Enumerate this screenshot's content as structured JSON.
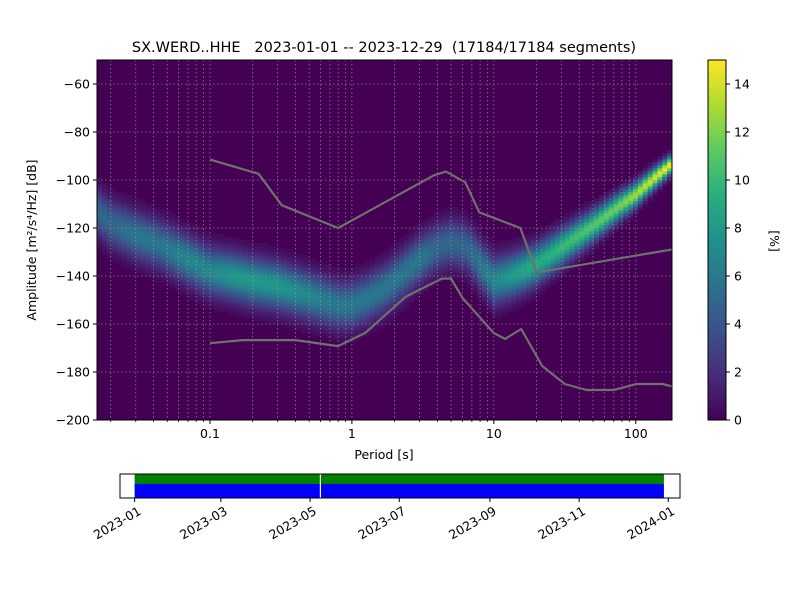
{
  "chart_data": [
    {
      "type": "heatmap",
      "title": "SX.WERD..HHE   2023-01-01 -- 2023-12-29  (17184/17184 segments)",
      "xlabel": "Period [s]",
      "ylabel": "Amplitude [m²/s⁴/Hz] [dB]",
      "xscale": "log",
      "xlim": [
        0.016,
        180
      ],
      "ylim": [
        -200,
        -50
      ],
      "xticks": [
        {
          "value": 0.1,
          "label": "0.1"
        },
        {
          "value": 1,
          "label": "1"
        },
        {
          "value": 10,
          "label": "10"
        },
        {
          "value": 100,
          "label": "100"
        }
      ],
      "yticks": [
        {
          "value": -60,
          "label": "−60"
        },
        {
          "value": -80,
          "label": "−80"
        },
        {
          "value": -100,
          "label": "−100"
        },
        {
          "value": -120,
          "label": "−120"
        },
        {
          "value": -140,
          "label": "−140"
        },
        {
          "value": -160,
          "label": "−160"
        },
        {
          "value": -180,
          "label": "−180"
        },
        {
          "value": -200,
          "label": "−200"
        }
      ],
      "grid": true,
      "colorbar": {
        "label": "[%]",
        "min": 0,
        "max": 15,
        "ticks": [
          {
            "value": 0,
            "label": "0"
          },
          {
            "value": 2,
            "label": "2"
          },
          {
            "value": 4,
            "label": "4"
          },
          {
            "value": 6,
            "label": "6"
          },
          {
            "value": 8,
            "label": "8"
          },
          {
            "value": 10,
            "label": "10"
          },
          {
            "value": 12,
            "label": "12"
          },
          {
            "value": 14,
            "label": "14"
          }
        ]
      },
      "mode_curve": {
        "period": [
          0.016,
          0.02,
          0.03,
          0.045,
          0.07,
          0.1,
          0.15,
          0.2,
          0.3,
          0.5,
          0.8,
          1.0,
          1.3,
          1.7,
          2.3,
          3.0,
          4.0,
          5.0,
          6.5,
          8.0,
          10,
          13,
          17,
          20,
          30,
          50,
          80,
          100,
          130,
          180
        ],
        "db": [
          -113,
          -118,
          -123,
          -127,
          -133,
          -138,
          -140,
          -142,
          -144,
          -148,
          -152,
          -152,
          -149,
          -145,
          -139,
          -133,
          -128,
          -126,
          -128,
          -135,
          -142,
          -140,
          -137,
          -135,
          -128,
          -119,
          -110,
          -106,
          -100,
          -93
        ],
        "peak_percent": [
          5,
          5,
          6,
          6,
          7,
          7,
          8,
          8,
          8,
          7,
          6,
          6,
          6,
          6,
          6,
          6,
          5,
          5,
          5,
          6,
          7,
          8,
          9,
          9,
          10,
          11,
          12,
          13,
          14,
          15
        ]
      },
      "noise_models": {
        "high": {
          "period": [
            0.1,
            0.22,
            0.32,
            0.8,
            3.8,
            4.6,
            6.3,
            7.9,
            15.4,
            20,
            354.8
          ],
          "db": [
            -91.5,
            -97.4,
            -110.5,
            -120,
            -98,
            -96.5,
            -101,
            -113.5,
            -120,
            -138.5,
            -126
          ]
        },
        "low": {
          "period": [
            0.1,
            0.17,
            0.4,
            0.8,
            1.24,
            2.4,
            4.3,
            5.0,
            6.0,
            10.0,
            12.0,
            15.6,
            21.9,
            31.6,
            45,
            70,
            101,
            154,
            180
          ],
          "db": [
            -168,
            -166.7,
            -166.7,
            -169.2,
            -163.7,
            -148.6,
            -141.1,
            -141.1,
            -149,
            -163.8,
            -166.2,
            -162.1,
            -177.5,
            -185,
            -187.5,
            -187.5,
            -185,
            -185,
            -186
          ]
        }
      }
    },
    {
      "type": "timeline",
      "start": "2023-01-01",
      "end": "2023-12-29",
      "xlim": [
        "2022-12-22",
        "2024-01-09"
      ],
      "gaps": [
        "2023-05-08"
      ],
      "colors": {
        "top": "#008000",
        "bottom": "#0000ff"
      },
      "xticks": [
        {
          "value": "2023-01-01",
          "label": "2023-01"
        },
        {
          "value": "2023-03-01",
          "label": "2023-03"
        },
        {
          "value": "2023-05-01",
          "label": "2023-05"
        },
        {
          "value": "2023-07-01",
          "label": "2023-07"
        },
        {
          "value": "2023-09-01",
          "label": "2023-09"
        },
        {
          "value": "2023-11-01",
          "label": "2023-11"
        },
        {
          "value": "2024-01-01",
          "label": "2024-01"
        }
      ]
    }
  ]
}
